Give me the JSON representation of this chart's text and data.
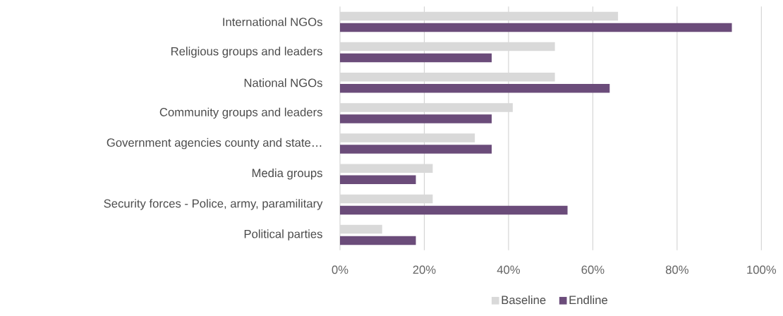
{
  "chart_data": {
    "type": "bar",
    "orientation": "horizontal",
    "categories": [
      "International NGOs",
      "Religious groups and leaders",
      "National NGOs",
      "Community groups and leaders",
      "Government agencies county and state…",
      "Media groups",
      "Security forces - Police, army, paramilitary",
      "Political parties"
    ],
    "series": [
      {
        "name": "Baseline",
        "color": "#d9d9d9",
        "values": [
          66,
          51,
          51,
          41,
          32,
          22,
          22,
          10
        ]
      },
      {
        "name": "Endline",
        "color": "#6b4c7a",
        "values": [
          93,
          36,
          64,
          36,
          36,
          18,
          54,
          18
        ]
      }
    ],
    "xlim": [
      0,
      100
    ],
    "xticks": [
      {
        "value": 0,
        "label": "0%"
      },
      {
        "value": 20,
        "label": "20%"
      },
      {
        "value": 40,
        "label": "40%"
      },
      {
        "value": 60,
        "label": "60%"
      },
      {
        "value": 80,
        "label": "80%"
      },
      {
        "value": 100,
        "label": "100%"
      }
    ],
    "grid": "x",
    "legend": "bottom"
  }
}
